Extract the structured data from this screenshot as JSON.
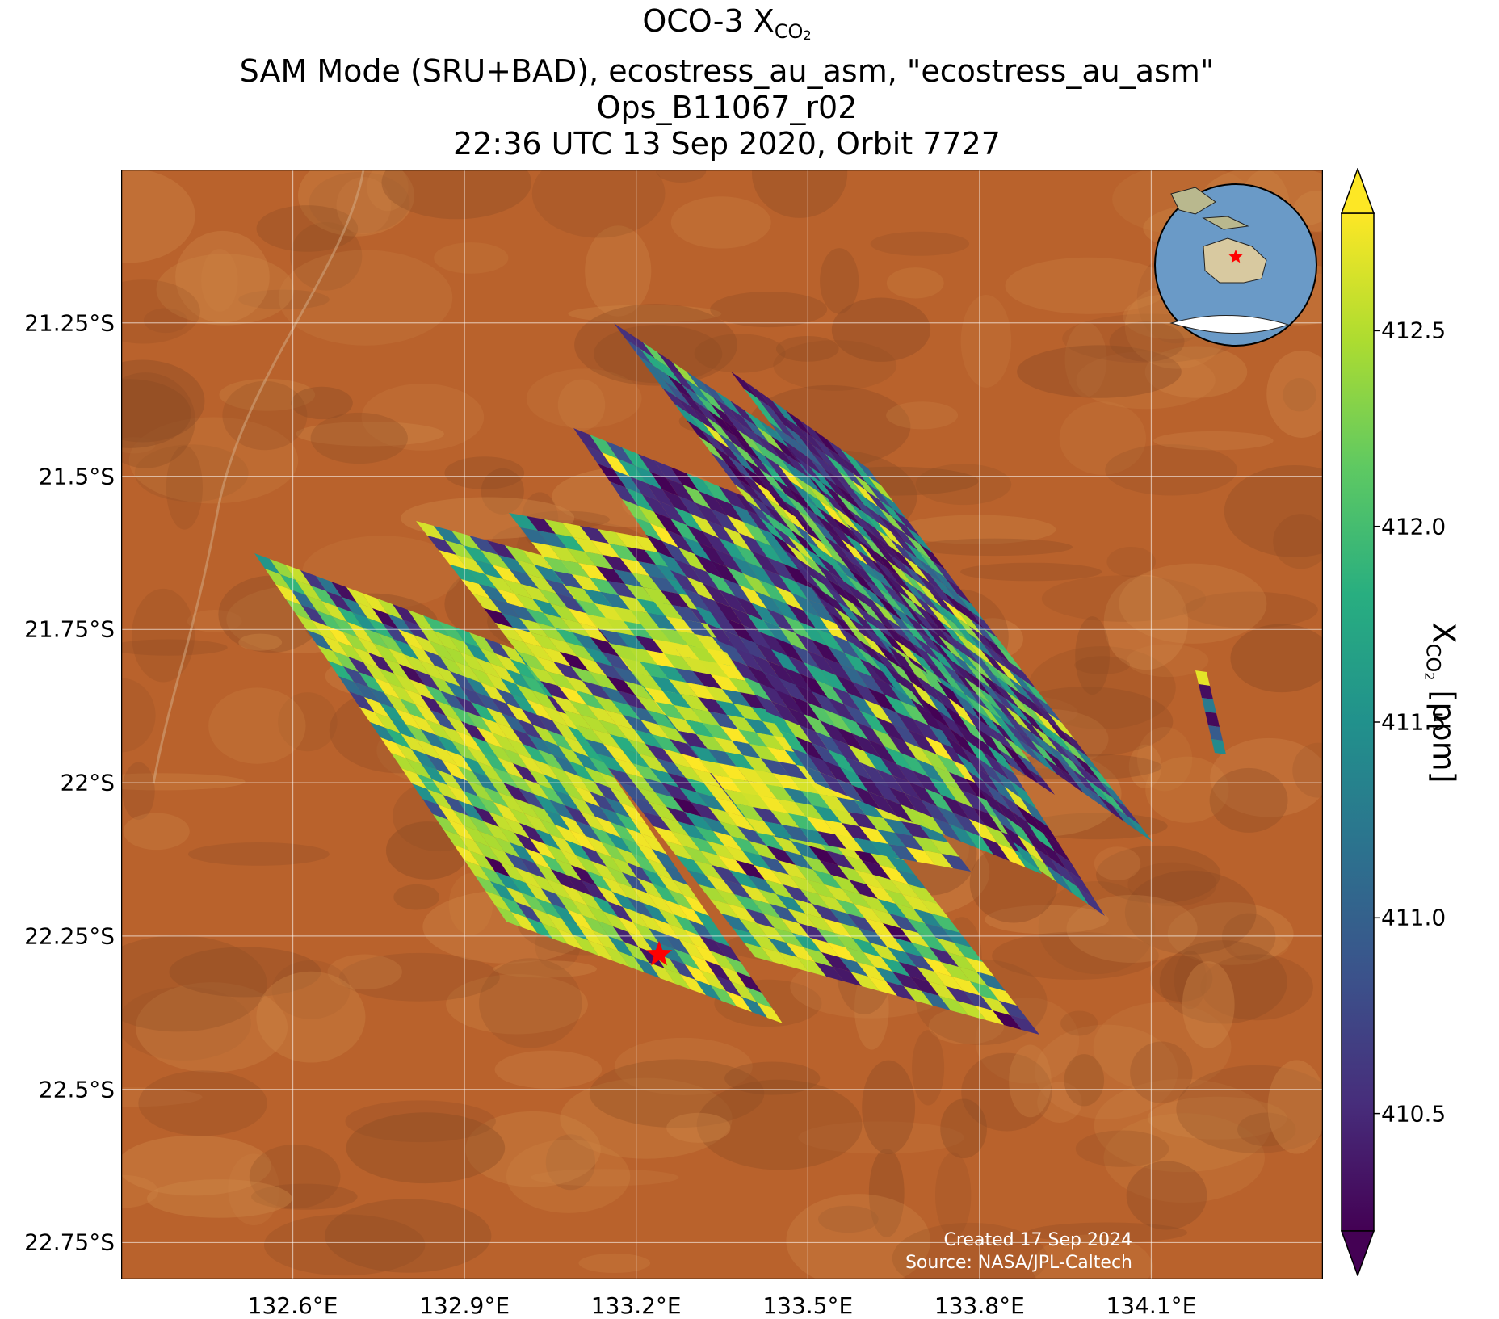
{
  "title": {
    "line1_prefix": "OCO-3 X",
    "line1_sub": "CO",
    "line1_sub2": "2",
    "line2": "SAM Mode (SRU+BAD), ecostress_au_asm, \"ecostress_au_asm\"",
    "line3": "Ops_B11067_r02",
    "line4": "22:36 UTC 13 Sep 2020, Orbit 7727"
  },
  "map": {
    "lon_range": [
      132.3,
      134.4
    ],
    "lat_range": [
      -22.81,
      -21.0
    ],
    "lon_ticks": [
      132.6,
      132.9,
      133.2,
      133.5,
      133.8,
      134.1
    ],
    "lon_tick_labels": [
      "132.6°E",
      "132.9°E",
      "133.2°E",
      "133.5°E",
      "133.8°E",
      "134.1°E"
    ],
    "lat_ticks": [
      -21.25,
      -21.5,
      -21.75,
      -22.0,
      -22.25,
      -22.5,
      -22.75
    ],
    "lat_tick_labels": [
      "21.25°S",
      "21.5°S",
      "21.75°S",
      "22°S",
      "22.25°S",
      "22.5°S",
      "22.75°S"
    ],
    "background_colors": {
      "desert": "#b9622c",
      "dark": "#8a4a24",
      "light": "#cf8848"
    },
    "target_marker": {
      "lon": 133.24,
      "lat": -22.28,
      "color": "#ff0000"
    },
    "credit_created": "Created 17 Sep 2024",
    "credit_source": "Source: NASA/JPL-Caltech",
    "inset_globe": {
      "center_lon": 133.2,
      "center_lat": -22.3,
      "ocean_color": "#6a9ac7",
      "marker_color": "#ff0000"
    }
  },
  "colorbar": {
    "colormap": "viridis",
    "vmin": 410.2,
    "vmax": 412.8,
    "ticks": [
      410.5,
      411.0,
      411.5,
      412.0,
      412.5
    ],
    "tick_labels": [
      "410.5",
      "411.0",
      "411.5",
      "412.0",
      "412.5"
    ],
    "extend": "both",
    "label_prefix": "X",
    "label_sub": "CO",
    "label_sub2": "2",
    "label_suffix": " [ppm]"
  }
}
